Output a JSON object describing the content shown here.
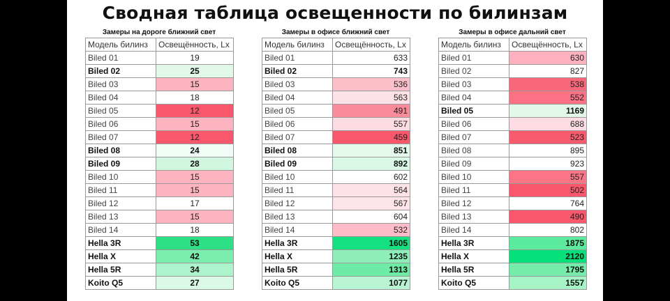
{
  "title": "Сводная таблица освещенности по билинзам",
  "colors": {
    "red_strong": "#f8576c",
    "red_medium": "#fb8a9a",
    "red_light": "#fdb7c3",
    "red_pale": "#fde0e6",
    "green_strong": "#05e07a",
    "green_medium": "#5ceb9e",
    "green_light": "#a6f3c6",
    "green_pale": "#e6fcef",
    "neutral": "#ffffff"
  },
  "tables": [
    {
      "title": "Замеры на дороге ближний свет",
      "headers": [
        "Модель билинз",
        "Освещённость, Lx"
      ],
      "rows": [
        {
          "model": "Biled 01",
          "value": "19",
          "bold": false,
          "color": "#ffffff"
        },
        {
          "model": "Biled 02",
          "value": "25",
          "bold": true,
          "color": "#e2f9ea"
        },
        {
          "model": "Biled 03",
          "value": "15",
          "bold": false,
          "color": "#fdb3c0"
        },
        {
          "model": "Biled 04",
          "value": "18",
          "bold": false,
          "color": "#ffffff"
        },
        {
          "model": "Biled 05",
          "value": "12",
          "bold": false,
          "color": "#f8576c"
        },
        {
          "model": "Biled 06",
          "value": "15",
          "bold": false,
          "color": "#fdb3c0"
        },
        {
          "model": "Biled 07",
          "value": "12",
          "bold": false,
          "color": "#f8576c"
        },
        {
          "model": "Biled 08",
          "value": "24",
          "bold": true,
          "color": "#f0fcf5"
        },
        {
          "model": "Biled 09",
          "value": "28",
          "bold": true,
          "color": "#d2f7e0"
        },
        {
          "model": "Biled 10",
          "value": "15",
          "bold": false,
          "color": "#fdb3c0"
        },
        {
          "model": "Biled 11",
          "value": "15",
          "bold": false,
          "color": "#fdb3c0"
        },
        {
          "model": "Biled 12",
          "value": "17",
          "bold": false,
          "color": "#ffffff"
        },
        {
          "model": "Biled 13",
          "value": "15",
          "bold": false,
          "color": "#fdb3c0"
        },
        {
          "model": "Biled 14",
          "value": "18",
          "bold": false,
          "color": "#ffffff"
        },
        {
          "model": "Hella 3R",
          "value": "53",
          "bold": true,
          "color": "#2ee085"
        },
        {
          "model": "Hella X",
          "value": "42",
          "bold": true,
          "color": "#7bedac"
        },
        {
          "model": "Hella 5R",
          "value": "34",
          "bold": true,
          "color": "#adf3cb"
        },
        {
          "model": "Koito Q5",
          "value": "27",
          "bold": true,
          "color": "#daf9e6"
        }
      ]
    },
    {
      "title": "Замеры в офисе ближний свет",
      "headers": [
        "Модель билинз",
        "Освещённость, Lx"
      ],
      "rows": [
        {
          "model": "Biled 01",
          "value": "633",
          "bold": false,
          "color": "#ffffff"
        },
        {
          "model": "Biled 02",
          "value": "743",
          "bold": true,
          "color": "#ffffff"
        },
        {
          "model": "Biled 03",
          "value": "536",
          "bold": false,
          "color": "#fdc0cb"
        },
        {
          "model": "Biled 04",
          "value": "563",
          "bold": false,
          "color": "#fde2e7"
        },
        {
          "model": "Biled 05",
          "value": "491",
          "bold": false,
          "color": "#fb8a9a"
        },
        {
          "model": "Biled 06",
          "value": "557",
          "bold": false,
          "color": "#fddbe2"
        },
        {
          "model": "Biled 07",
          "value": "459",
          "bold": false,
          "color": "#f8576c"
        },
        {
          "model": "Biled 08",
          "value": "851",
          "bold": true,
          "color": "#e4f9ec"
        },
        {
          "model": "Biled 09",
          "value": "892",
          "bold": true,
          "color": "#daf8e6"
        },
        {
          "model": "Biled 10",
          "value": "602",
          "bold": false,
          "color": "#ffffff"
        },
        {
          "model": "Biled 11",
          "value": "564",
          "bold": false,
          "color": "#fde2e7"
        },
        {
          "model": "Biled 12",
          "value": "567",
          "bold": false,
          "color": "#fde4e9"
        },
        {
          "model": "Biled 13",
          "value": "604",
          "bold": false,
          "color": "#ffffff"
        },
        {
          "model": "Biled 14",
          "value": "532",
          "bold": false,
          "color": "#fdbcc8"
        },
        {
          "model": "Hella 3R",
          "value": "1605",
          "bold": true,
          "color": "#14e07f"
        },
        {
          "model": "Hella X",
          "value": "1235",
          "bold": true,
          "color": "#8ef0b8"
        },
        {
          "model": "Hella 5R",
          "value": "1313",
          "bold": true,
          "color": "#6eeca6"
        },
        {
          "model": "Koito Q5",
          "value": "1077",
          "bold": true,
          "color": "#b9f4d2"
        }
      ]
    },
    {
      "title": "Замеры в офисе дальний свет",
      "headers": [
        "Модель билинз",
        "Освещённость, Lx"
      ],
      "rows": [
        {
          "model": "Biled 01",
          "value": "630",
          "bold": false,
          "color": "#fdb0bd"
        },
        {
          "model": "Biled 02",
          "value": "827",
          "bold": false,
          "color": "#ffffff"
        },
        {
          "model": "Biled 03",
          "value": "538",
          "bold": false,
          "color": "#f9677a"
        },
        {
          "model": "Biled 04",
          "value": "552",
          "bold": false,
          "color": "#fa7284"
        },
        {
          "model": "Biled 05",
          "value": "1169",
          "bold": true,
          "color": "#e2f9ea"
        },
        {
          "model": "Biled 06",
          "value": "688",
          "bold": false,
          "color": "#fddde3"
        },
        {
          "model": "Biled 07",
          "value": "523",
          "bold": false,
          "color": "#f85a6e"
        },
        {
          "model": "Biled 08",
          "value": "895",
          "bold": false,
          "color": "#ffffff"
        },
        {
          "model": "Biled 09",
          "value": "923",
          "bold": false,
          "color": "#ffffff"
        },
        {
          "model": "Biled 10",
          "value": "557",
          "bold": false,
          "color": "#fa7687"
        },
        {
          "model": "Biled 11",
          "value": "502",
          "bold": false,
          "color": "#f8576c"
        },
        {
          "model": "Biled 12",
          "value": "764",
          "bold": false,
          "color": "#ffffff"
        },
        {
          "model": "Biled 13",
          "value": "490",
          "bold": false,
          "color": "#f8576c"
        },
        {
          "model": "Biled 14",
          "value": "802",
          "bold": false,
          "color": "#ffffff"
        },
        {
          "model": "Hella 3R",
          "value": "1875",
          "bold": true,
          "color": "#5ceb9e"
        },
        {
          "model": "Hella X",
          "value": "2120",
          "bold": true,
          "color": "#05e07a"
        },
        {
          "model": "Hella 5R",
          "value": "1795",
          "bold": true,
          "color": "#75eca9"
        },
        {
          "model": "Koito Q5",
          "value": "1557",
          "bold": true,
          "color": "#a6f3c6"
        }
      ]
    }
  ]
}
